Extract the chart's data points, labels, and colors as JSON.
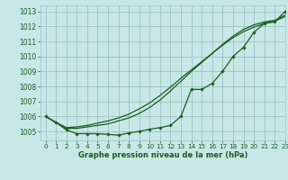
{
  "title": "Graphe pression niveau de la mer (hPa)",
  "background_color": "#c8e8e8",
  "grid_color": "#a0c8c8",
  "line_color": "#1a5c1a",
  "xlim": [
    -0.5,
    23
  ],
  "ylim": [
    1004.4,
    1013.4
  ],
  "yticks": [
    1005,
    1006,
    1007,
    1008,
    1009,
    1010,
    1011,
    1012,
    1013
  ],
  "xticks": [
    0,
    1,
    2,
    3,
    4,
    5,
    6,
    7,
    8,
    9,
    10,
    11,
    12,
    13,
    14,
    15,
    16,
    17,
    18,
    19,
    20,
    21,
    22,
    23
  ],
  "series_marker": [
    1006.0,
    1005.6,
    1005.1,
    1004.85,
    1004.85,
    1004.85,
    1004.8,
    1004.75,
    1004.9,
    1005.0,
    1005.15,
    1005.25,
    1005.4,
    1006.0,
    1007.8,
    1007.8,
    1008.2,
    1009.0,
    1010.0,
    1010.6,
    1011.6,
    1012.2,
    1012.3,
    1013.0
  ],
  "series_smooth1": [
    1006.0,
    1005.6,
    1005.2,
    1005.2,
    1005.3,
    1005.4,
    1005.5,
    1005.7,
    1005.9,
    1006.2,
    1006.6,
    1007.1,
    1007.7,
    1008.35,
    1009.0,
    1009.6,
    1010.2,
    1010.8,
    1011.35,
    1011.8,
    1012.1,
    1012.3,
    1012.4,
    1012.75
  ],
  "series_smooth2": [
    1006.0,
    1005.6,
    1005.25,
    1005.3,
    1005.4,
    1005.55,
    1005.7,
    1005.9,
    1006.15,
    1006.5,
    1006.9,
    1007.4,
    1007.95,
    1008.55,
    1009.1,
    1009.65,
    1010.2,
    1010.75,
    1011.25,
    1011.65,
    1011.95,
    1012.2,
    1012.35,
    1012.65
  ]
}
